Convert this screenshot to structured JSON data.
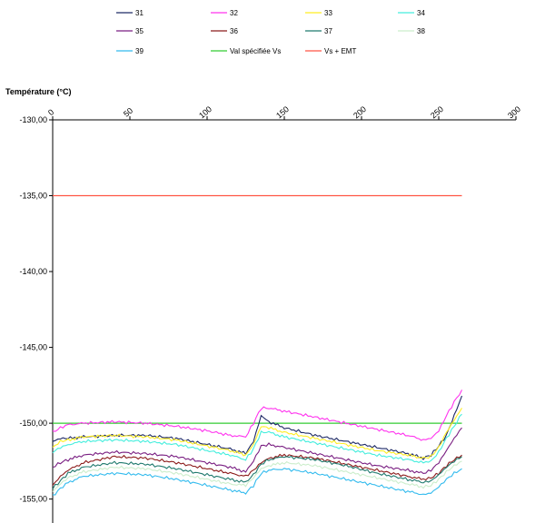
{
  "chart_data": {
    "type": "line",
    "ylabel": "Température (°C)",
    "xlim": [
      0,
      300
    ],
    "ylim": [
      -155,
      -130
    ],
    "x_ticks": [
      "0",
      "50",
      "100",
      "150",
      "200",
      "250",
      "300"
    ],
    "y_ticks": [
      "-130,00",
      "-135,00",
      "-140,00",
      "-145,00",
      "-150,00",
      "-155,00"
    ],
    "grid": false,
    "legend_position": "top",
    "reference_lines": [
      {
        "name": "Val spécifiée Vs",
        "color": "#33cc33",
        "y": -150
      },
      {
        "name": "Vs + EMT",
        "color": "#ff5544",
        "y": -135
      }
    ],
    "x": [
      0,
      5,
      10,
      20,
      40,
      60,
      80,
      100,
      115,
      125,
      130,
      135,
      140,
      150,
      170,
      190,
      210,
      230,
      240,
      245,
      250,
      255,
      260,
      265
    ],
    "series": [
      {
        "name": "31",
        "color": "#1f2a66",
        "values": [
          -151.2,
          -151.0,
          -151.0,
          -150.9,
          -150.8,
          -150.8,
          -151.0,
          -151.4,
          -151.7,
          -152.0,
          -151.2,
          -149.5,
          -149.9,
          -150.3,
          -150.8,
          -151.2,
          -151.6,
          -152.0,
          -152.3,
          -152.1,
          -151.5,
          -150.8,
          -149.5,
          -148.2
        ]
      },
      {
        "name": "32",
        "color": "#ff33ee",
        "values": [
          -150.6,
          -150.3,
          -150.1,
          -150.0,
          -149.9,
          -150.0,
          -150.2,
          -150.5,
          -150.8,
          -150.9,
          -150.0,
          -149.0,
          -149.0,
          -149.2,
          -149.6,
          -150.0,
          -150.4,
          -150.8,
          -151.1,
          -151.0,
          -150.5,
          -149.5,
          -148.6,
          -147.8
        ]
      },
      {
        "name": "33",
        "color": "#ffee22",
        "values": [
          -151.6,
          -151.2,
          -151.1,
          -150.9,
          -150.8,
          -150.9,
          -151.1,
          -151.5,
          -151.8,
          -152.1,
          -151.4,
          -150.2,
          -150.3,
          -150.6,
          -151.0,
          -151.4,
          -151.8,
          -152.1,
          -152.3,
          -152.2,
          -151.6,
          -150.6,
          -149.8,
          -149.0
        ]
      },
      {
        "name": "34",
        "color": "#44eedd",
        "values": [
          -151.9,
          -151.6,
          -151.4,
          -151.2,
          -151.1,
          -151.2,
          -151.4,
          -151.8,
          -152.1,
          -152.4,
          -151.7,
          -150.6,
          -150.6,
          -150.9,
          -151.3,
          -151.7,
          -152.1,
          -152.4,
          -152.6,
          -152.5,
          -151.9,
          -151.0,
          -150.2,
          -149.4
        ]
      },
      {
        "name": "35",
        "color": "#7a1f82",
        "values": [
          -152.9,
          -152.6,
          -152.4,
          -152.1,
          -151.9,
          -152.0,
          -152.2,
          -152.6,
          -152.9,
          -153.2,
          -152.5,
          -151.5,
          -151.4,
          -151.6,
          -152.0,
          -152.4,
          -152.8,
          -153.1,
          -153.3,
          -153.1,
          -152.6,
          -151.8,
          -151.0,
          -150.3
        ]
      },
      {
        "name": "36",
        "color": "#8b1a1a",
        "values": [
          -154.1,
          -153.5,
          -153.1,
          -152.6,
          -152.2,
          -152.3,
          -152.6,
          -153.0,
          -153.3,
          -153.5,
          -153.1,
          -152.6,
          -152.3,
          -152.1,
          -152.3,
          -152.7,
          -153.1,
          -153.5,
          -153.7,
          -153.6,
          -153.3,
          -152.8,
          -152.4,
          -152.1
        ]
      },
      {
        "name": "37",
        "color": "#1f7a6e",
        "values": [
          -154.3,
          -153.8,
          -153.3,
          -152.9,
          -152.6,
          -152.7,
          -153.0,
          -153.4,
          -153.7,
          -153.9,
          -153.4,
          -152.7,
          -152.4,
          -152.2,
          -152.4,
          -152.8,
          -153.3,
          -153.7,
          -153.9,
          -153.8,
          -153.4,
          -152.9,
          -152.5,
          -152.2
        ]
      },
      {
        "name": "38",
        "color": "#cceecc",
        "values": [
          -154.5,
          -154.0,
          -153.6,
          -153.2,
          -152.9,
          -153.0,
          -153.3,
          -153.7,
          -154.0,
          -154.1,
          -153.6,
          -153.0,
          -152.8,
          -152.6,
          -152.8,
          -153.2,
          -153.6,
          -154.0,
          -154.2,
          -154.1,
          -153.7,
          -153.2,
          -152.8,
          -152.5
        ]
      },
      {
        "name": "39",
        "color": "#33bbee",
        "values": [
          -154.8,
          -154.3,
          -153.9,
          -153.5,
          -153.3,
          -153.4,
          -153.7,
          -154.1,
          -154.4,
          -154.6,
          -154.1,
          -153.3,
          -153.1,
          -153.0,
          -153.3,
          -153.7,
          -154.1,
          -154.5,
          -154.7,
          -154.6,
          -154.2,
          -153.7,
          -153.3,
          -153.0
        ]
      }
    ]
  }
}
